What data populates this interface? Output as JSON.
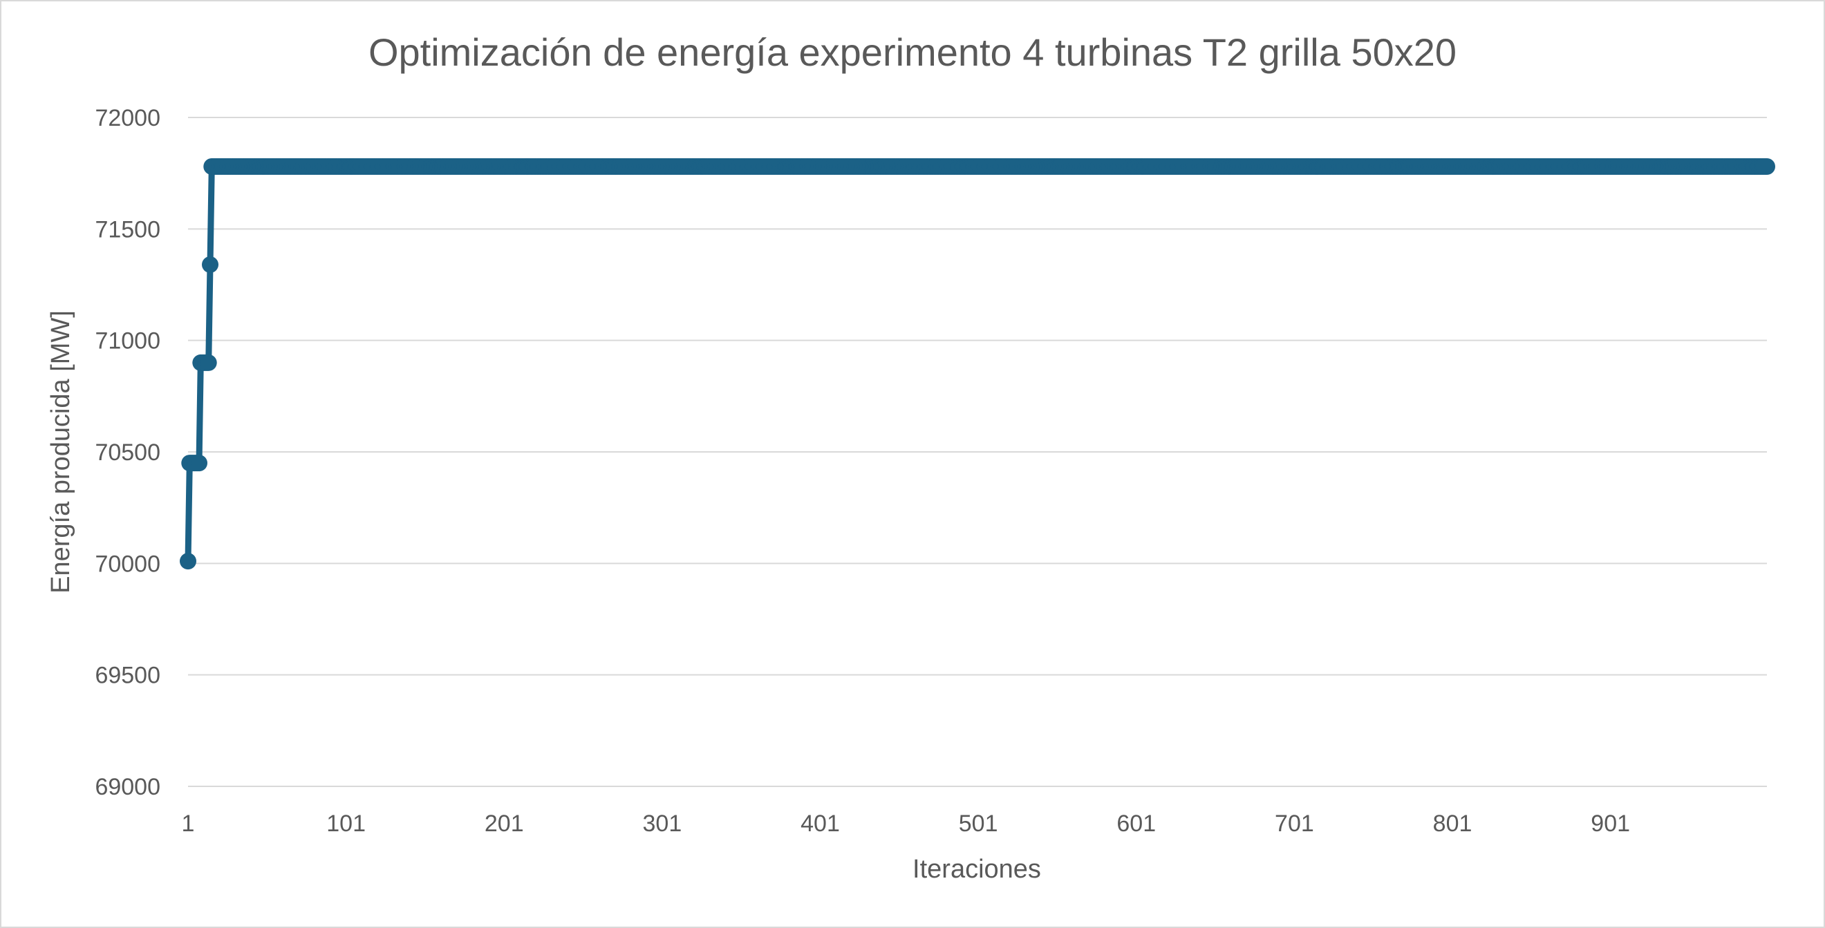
{
  "chart_data": {
    "type": "line",
    "title": "Optimización de energía experimento 4 turbinas T2 grilla 50x20",
    "xlabel": "Iteraciones",
    "ylabel": "Energía producida [MW]",
    "ylim": [
      69000,
      72000
    ],
    "yticks": [
      "69000",
      "69500",
      "70000",
      "70500",
      "71000",
      "71500",
      "72000"
    ],
    "xlim": [
      1,
      1000
    ],
    "xticks": [
      "1",
      "101",
      "201",
      "301",
      "401",
      "501",
      "601",
      "701",
      "801",
      "901"
    ],
    "grid": true,
    "legend": "none",
    "series_color": "#1b6186",
    "series": [
      {
        "x": [
          1,
          2,
          3,
          4,
          5,
          6,
          7,
          8,
          9,
          10,
          11,
          12,
          13,
          14,
          15,
          16,
          17,
          1000
        ],
        "y": [
          70010,
          70450,
          70450,
          70450,
          70450,
          70450,
          70450,
          70450,
          70900,
          70900,
          70900,
          70900,
          70900,
          70900,
          71340,
          71780,
          71780,
          71780
        ]
      }
    ]
  }
}
